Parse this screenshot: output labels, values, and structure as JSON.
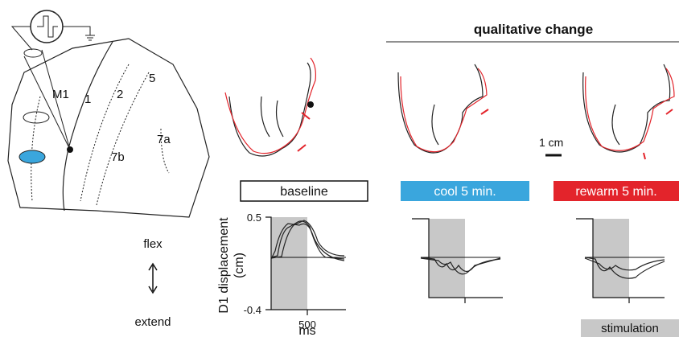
{
  "brain": {
    "labels": [
      "M1",
      "1",
      "2",
      "5",
      "7a",
      "7b"
    ]
  },
  "header": "qualitative change",
  "scale_bar": "1 cm",
  "conditions": [
    {
      "label": "baseline"
    },
    {
      "label": "cool 5 min."
    },
    {
      "label": "rewarm 5 min."
    }
  ],
  "plot": {
    "y_axis_label": "D1 displacement",
    "y_axis_unit": "(cm)",
    "y_ticks": [
      "0.5",
      "-0.4"
    ],
    "x_tick": "500",
    "x_axis_label": "ms"
  },
  "direction": {
    "up": "flex",
    "down": "extend"
  },
  "legend": "stimulation"
}
